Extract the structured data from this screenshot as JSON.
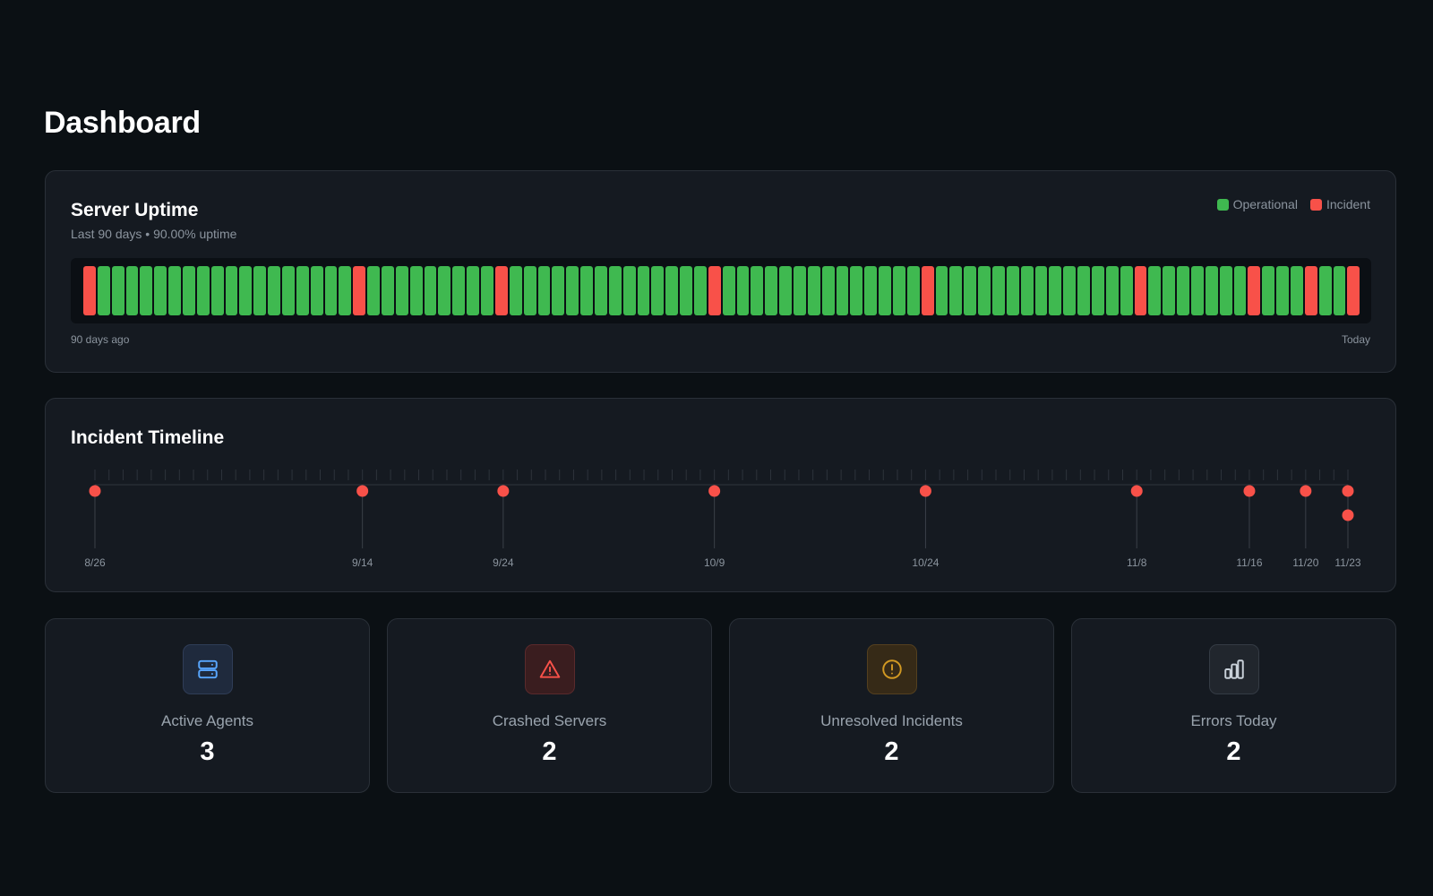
{
  "page": {
    "title": "Dashboard"
  },
  "colors": {
    "operational": "#3fb950",
    "incident": "#f85149",
    "background": "#0b1014",
    "card": "#151a21"
  },
  "uptime": {
    "title": "Server Uptime",
    "subtitle": "Last 90 days • 90.00% uptime",
    "legend": [
      {
        "label": "Operational",
        "status": "operational"
      },
      {
        "label": "Incident",
        "status": "incident"
      }
    ],
    "start_label": "90 days ago",
    "end_label": "Today",
    "incident_day_indices": [
      0,
      19,
      29,
      44,
      59,
      74,
      82,
      86,
      89
    ],
    "day_count": 90
  },
  "timeline": {
    "title": "Incident Timeline",
    "tick_count": 90,
    "incidents": [
      {
        "date": "8/26",
        "day_index": 0,
        "count": 1
      },
      {
        "date": "9/14",
        "day_index": 19,
        "count": 1
      },
      {
        "date": "9/24",
        "day_index": 29,
        "count": 1
      },
      {
        "date": "10/9",
        "day_index": 44,
        "count": 1
      },
      {
        "date": "10/24",
        "day_index": 59,
        "count": 1
      },
      {
        "date": "11/8",
        "day_index": 74,
        "count": 1
      },
      {
        "date": "11/16",
        "day_index": 82,
        "count": 1
      },
      {
        "date": "11/20",
        "day_index": 86,
        "count": 1
      },
      {
        "date": "11/23",
        "day_index": 89,
        "count": 2
      }
    ]
  },
  "stats": [
    {
      "label": "Active Agents",
      "value": "3",
      "icon": "server-icon",
      "accent": "#58a6ff",
      "icon_bg": "#1f2a3d"
    },
    {
      "label": "Crashed Servers",
      "value": "2",
      "icon": "alert-triangle-icon",
      "accent": "#f85149",
      "icon_bg": "#3a1d1f"
    },
    {
      "label": "Unresolved Incidents",
      "value": "2",
      "icon": "alert-circle-icon",
      "accent": "#d29922",
      "icon_bg": "#362a17"
    },
    {
      "label": "Errors Today",
      "value": "2",
      "icon": "bar-chart-icon",
      "accent": "#c9d1d9",
      "icon_bg": "#21262d"
    }
  ]
}
